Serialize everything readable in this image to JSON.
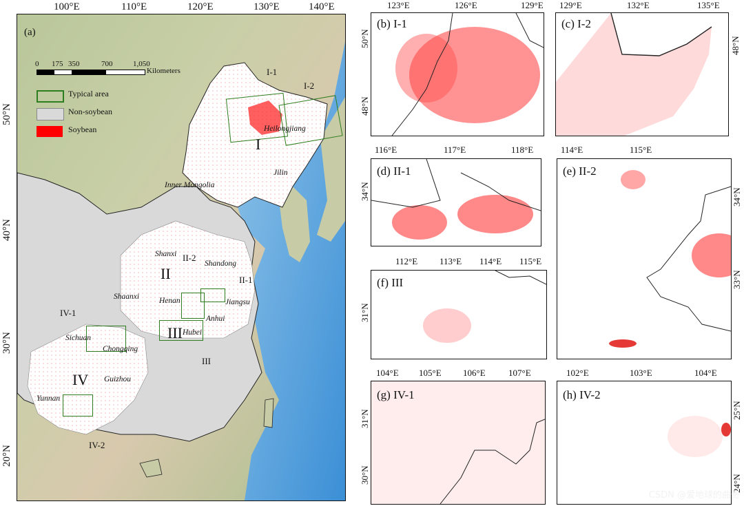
{
  "main_map": {
    "panel_label": "(a)",
    "lon_ticks": [
      "100°E",
      "110°E",
      "120°E",
      "130°E",
      "140°E"
    ],
    "lat_ticks": [
      "50°N",
      "40°N",
      "30°N",
      "20°N"
    ],
    "scale_bar": {
      "ticks": [
        "0",
        "175",
        "350",
        "700",
        "1,050"
      ],
      "unit": "Kilometers"
    },
    "legend": [
      {
        "label": "Typical area",
        "swatch": "#2e7d1e",
        "kind": "outline"
      },
      {
        "label": "Non-soybean",
        "swatch": "#d9d9d9",
        "kind": "fill"
      },
      {
        "label": "Soybean",
        "swatch": "#ff0000",
        "kind": "fill"
      }
    ],
    "provinces": [
      "Heilongjiang",
      "Jilin",
      "Inner Mongolia",
      "Shanxi",
      "Shandong",
      "Shaanxi",
      "Henan",
      "Jiangsu",
      "Anhui",
      "Hubei",
      "Sichuan",
      "Chongqing",
      "Guizhou",
      "Yunnan"
    ],
    "regions": [
      "I",
      "II",
      "III",
      "IV"
    ],
    "typical_areas": [
      "I-1",
      "I-2",
      "II-1",
      "II-2",
      "III",
      "IV-1",
      "IV-2"
    ]
  },
  "panels": [
    {
      "id": "b",
      "title": "(b) I-1",
      "top_ticks": [
        "123°E",
        "126°E",
        "129°E"
      ],
      "side_ticks": [
        "50°N",
        "48°N"
      ],
      "density": "high"
    },
    {
      "id": "c",
      "title": "(c) I-2",
      "top_ticks": [
        "129°E",
        "132°E",
        "135°E"
      ],
      "side_ticks": [
        "48°N"
      ],
      "density": "medium"
    },
    {
      "id": "d",
      "title": "(d) II-1",
      "top_ticks": [
        "116°E",
        "117°E",
        "118°E"
      ],
      "side_ticks": [
        "34°N"
      ],
      "density": "high"
    },
    {
      "id": "e",
      "title": "(e) II-2",
      "top_ticks": [
        "114°E",
        "115°E"
      ],
      "side_ticks": [
        "34°N",
        "33°N"
      ],
      "density": "medium"
    },
    {
      "id": "f",
      "title": "(f) III",
      "top_ticks": [
        "112°E",
        "113°E",
        "114°E",
        "115°E"
      ],
      "side_ticks": [
        "31°N"
      ],
      "density": "low"
    },
    {
      "id": "g",
      "title": "(g) IV-1",
      "top_ticks": [
        "104°E",
        "105°E",
        "106°E",
        "107°E"
      ],
      "side_ticks": [
        "31°N",
        "30°N"
      ],
      "density": "medium"
    },
    {
      "id": "h",
      "title": "(h) IV-2",
      "top_ticks": [
        "102°E",
        "103°E",
        "104°E"
      ],
      "side_ticks": [
        "25°N",
        "24°N"
      ],
      "density": "low"
    }
  ],
  "watermark": "CSDN @爱地球的曲奇"
}
